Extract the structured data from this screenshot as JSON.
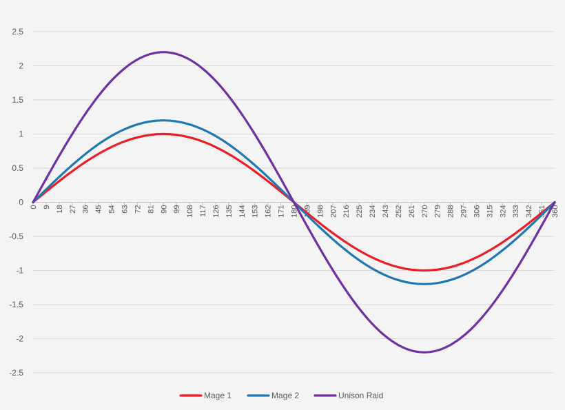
{
  "chart_data": {
    "type": "line",
    "title": "",
    "xlabel": "",
    "ylabel": "",
    "x_ticks": [
      0,
      9,
      18,
      27,
      36,
      45,
      54,
      63,
      72,
      81,
      90,
      99,
      108,
      117,
      126,
      135,
      144,
      153,
      162,
      171,
      180,
      189,
      198,
      207,
      216,
      225,
      234,
      243,
      252,
      261,
      270,
      279,
      288,
      297,
      306,
      315,
      324,
      333,
      342,
      351,
      360
    ],
    "xlim": [
      0,
      360
    ],
    "ylim": [
      -2.5,
      2.5
    ],
    "y_ticks": [
      2.5,
      2,
      1.5,
      1,
      0.5,
      0,
      -0.5,
      -1,
      -1.5,
      -2,
      -2.5
    ],
    "y_tick_labels": [
      "2.5",
      "2",
      "1.5",
      "1",
      "0.5",
      "0",
      "-0.5",
      "-1",
      "-1.5",
      "-2",
      "-2.5"
    ],
    "grid": true,
    "legend_position": "bottom",
    "series": [
      {
        "name": "Mage 1",
        "color": "#ee1c24",
        "x": [
          0,
          9,
          18,
          27,
          36,
          45,
          54,
          63,
          72,
          81,
          90,
          99,
          108,
          117,
          126,
          135,
          144,
          153,
          162,
          171,
          180,
          189,
          198,
          207,
          216,
          225,
          234,
          243,
          252,
          261,
          270,
          279,
          288,
          297,
          306,
          315,
          324,
          333,
          342,
          351,
          360
        ],
        "values": [
          0,
          0.156,
          0.309,
          0.454,
          0.588,
          0.707,
          0.809,
          0.891,
          0.951,
          0.988,
          1,
          0.988,
          0.951,
          0.891,
          0.809,
          0.707,
          0.588,
          0.454,
          0.309,
          0.156,
          0,
          -0.156,
          -0.309,
          -0.454,
          -0.588,
          -0.707,
          -0.809,
          -0.891,
          -0.951,
          -0.988,
          -1,
          -0.988,
          -0.951,
          -0.891,
          -0.809,
          -0.707,
          -0.588,
          -0.454,
          -0.309,
          -0.156,
          0
        ]
      },
      {
        "name": "Mage 2",
        "color": "#1f77b4",
        "x": [
          0,
          9,
          18,
          27,
          36,
          45,
          54,
          63,
          72,
          81,
          90,
          99,
          108,
          117,
          126,
          135,
          144,
          153,
          162,
          171,
          180,
          189,
          198,
          207,
          216,
          225,
          234,
          243,
          252,
          261,
          270,
          279,
          288,
          297,
          306,
          315,
          324,
          333,
          342,
          351,
          360
        ],
        "values": [
          0,
          0.188,
          0.371,
          0.545,
          0.705,
          0.849,
          0.971,
          1.069,
          1.141,
          1.185,
          1.2,
          1.185,
          1.141,
          1.069,
          0.971,
          0.849,
          0.705,
          0.545,
          0.371,
          0.188,
          0,
          -0.188,
          -0.371,
          -0.545,
          -0.705,
          -0.849,
          -0.971,
          -1.069,
          -1.141,
          -1.185,
          -1.2,
          -1.185,
          -1.141,
          -1.069,
          -0.971,
          -0.849,
          -0.705,
          -0.545,
          -0.371,
          -0.188,
          0
        ]
      },
      {
        "name": "Unison Raid",
        "color": "#7030a0",
        "x": [
          0,
          9,
          18,
          27,
          36,
          45,
          54,
          63,
          72,
          81,
          90,
          99,
          108,
          117,
          126,
          135,
          144,
          153,
          162,
          171,
          180,
          189,
          198,
          207,
          216,
          225,
          234,
          243,
          252,
          261,
          270,
          279,
          288,
          297,
          306,
          315,
          324,
          333,
          342,
          351,
          360
        ],
        "values": [
          0,
          0.344,
          0.68,
          0.999,
          1.293,
          1.556,
          1.78,
          1.96,
          2.092,
          2.173,
          2.2,
          2.173,
          2.092,
          1.96,
          1.78,
          1.556,
          1.293,
          0.999,
          0.68,
          0.344,
          0,
          -0.344,
          -0.68,
          -0.999,
          -1.293,
          -1.556,
          -1.78,
          -1.96,
          -2.092,
          -2.173,
          -2.2,
          -2.173,
          -2.092,
          -1.96,
          -1.78,
          -1.556,
          -1.293,
          -0.999,
          -0.68,
          -0.344,
          0
        ]
      }
    ]
  }
}
